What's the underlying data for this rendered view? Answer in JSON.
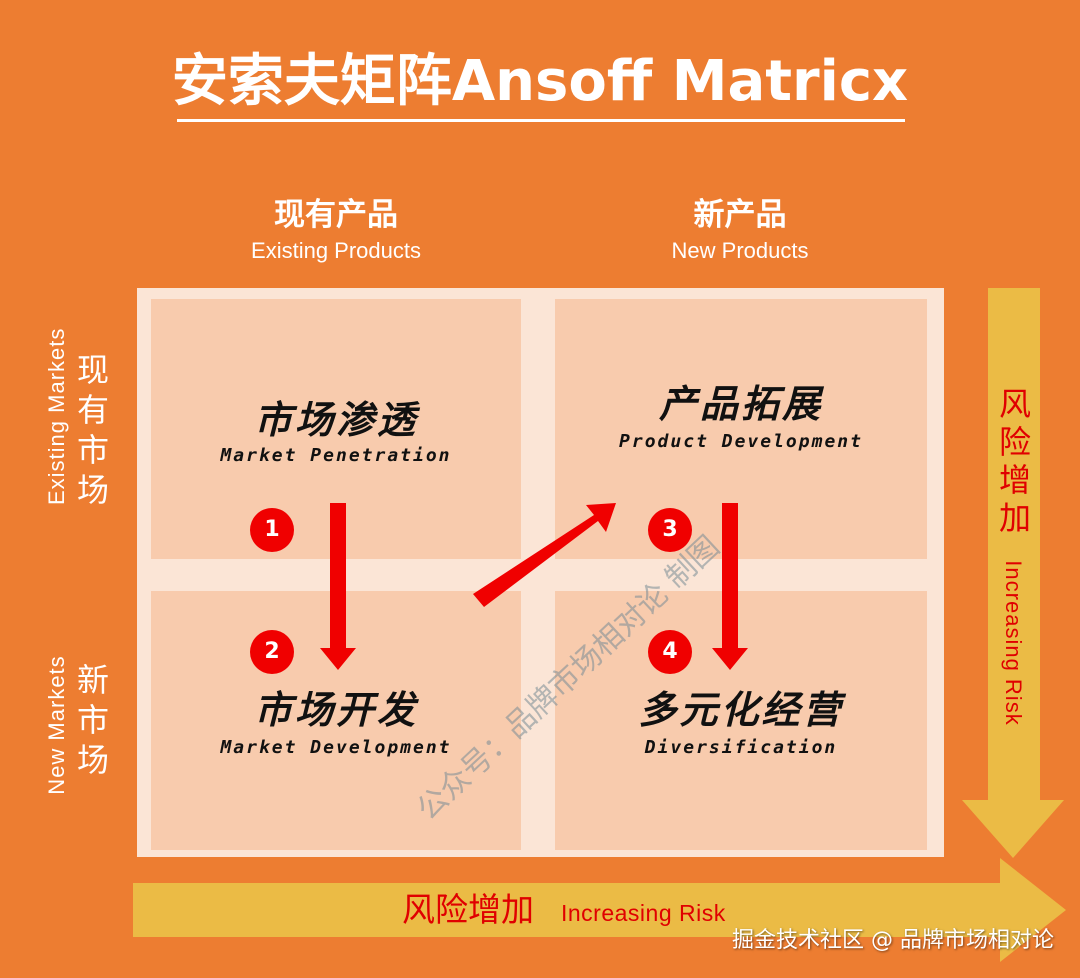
{
  "title": "安索夫矩阵Ansoff Matricx",
  "columns": [
    {
      "zh": "现有产品",
      "en": "Existing Products"
    },
    {
      "zh": "新产品",
      "en": "New Products"
    }
  ],
  "rows": [
    {
      "zh": "现有市场",
      "en": "Existing Markets"
    },
    {
      "zh": "新市场",
      "en": "New Markets"
    }
  ],
  "cells": [
    {
      "zh": "市场渗透",
      "en": "Market Penetration",
      "number": "1"
    },
    {
      "zh": "产品拓展",
      "en": "Product Development",
      "number": "3"
    },
    {
      "zh": "市场开发",
      "en": "Market Development",
      "number": "2"
    },
    {
      "zh": "多元化经营",
      "en": "Diversification",
      "number": "4"
    }
  ],
  "risk_vertical": {
    "zh": "风险增加",
    "en": "Increasing Risk"
  },
  "risk_horizontal": {
    "zh": "风险增加",
    "en": "Increasing Risk"
  },
  "watermark": "公众号：品牌市场相对论 制图",
  "footer": "掘金技术社区 @ 品牌市场相对论",
  "colors": {
    "background": "#ED7D31",
    "matrix": "#FBE5D6",
    "cell": "#F8CBAD",
    "risk_arrow": "#EBBB45",
    "flow_arrow": "#F00000"
  }
}
